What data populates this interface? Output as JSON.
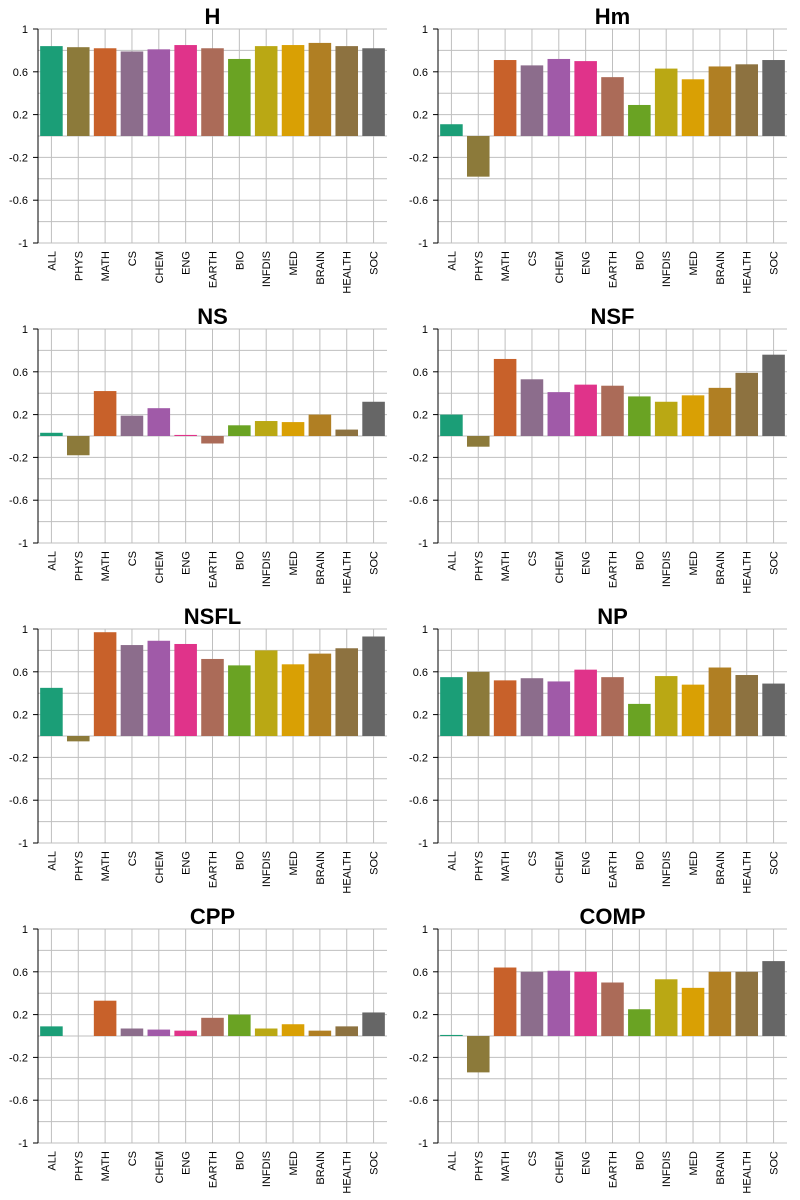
{
  "chart_data": [
    {
      "type": "bar",
      "title": "H",
      "categories": [
        "ALL",
        "PHYS",
        "MATH",
        "CS",
        "CHEM",
        "ENG",
        "EARTH",
        "BIO",
        "INFDIS",
        "MED",
        "BRAIN",
        "HEALTH",
        "SOC"
      ],
      "values": [
        0.84,
        0.83,
        0.82,
        0.79,
        0.81,
        0.85,
        0.82,
        0.72,
        0.84,
        0.85,
        0.87,
        0.84,
        0.82
      ],
      "ylim": [
        -1,
        1
      ],
      "yticks": [
        "1",
        "0.6",
        "0.2",
        "-0.2",
        "-0.6",
        "-1"
      ],
      "xlabel": "",
      "ylabel": "",
      "grid": true
    },
    {
      "type": "bar",
      "title": "Hm",
      "categories": [
        "ALL",
        "PHYS",
        "MATH",
        "CS",
        "CHEM",
        "ENG",
        "EARTH",
        "BIO",
        "INFDIS",
        "MED",
        "BRAIN",
        "HEALTH",
        "SOC"
      ],
      "values": [
        0.11,
        -0.38,
        0.71,
        0.66,
        0.72,
        0.7,
        0.55,
        0.29,
        0.63,
        0.53,
        0.65,
        0.67,
        0.71
      ],
      "ylim": [
        -1,
        1
      ],
      "yticks": [
        "1",
        "0.6",
        "0.2",
        "-0.2",
        "-0.6",
        "-1"
      ],
      "xlabel": "",
      "ylabel": "",
      "grid": true
    },
    {
      "type": "bar",
      "title": "NS",
      "categories": [
        "ALL",
        "PHYS",
        "MATH",
        "CS",
        "CHEM",
        "ENG",
        "EARTH",
        "BIO",
        "INFDIS",
        "MED",
        "BRAIN",
        "HEALTH",
        "SOC"
      ],
      "values": [
        0.03,
        -0.18,
        0.42,
        0.19,
        0.26,
        0.01,
        -0.07,
        0.1,
        0.14,
        0.13,
        0.2,
        0.06,
        0.32
      ],
      "ylim": [
        -1,
        1
      ],
      "yticks": [
        "1",
        "0.6",
        "0.2",
        "-0.2",
        "-0.6",
        "-1"
      ],
      "xlabel": "",
      "ylabel": "",
      "grid": true
    },
    {
      "type": "bar",
      "title": "NSF",
      "categories": [
        "ALL",
        "PHYS",
        "MATH",
        "CS",
        "CHEM",
        "ENG",
        "EARTH",
        "BIO",
        "INFDIS",
        "MED",
        "BRAIN",
        "HEALTH",
        "SOC"
      ],
      "values": [
        0.2,
        -0.1,
        0.72,
        0.53,
        0.41,
        0.48,
        0.47,
        0.37,
        0.32,
        0.38,
        0.45,
        0.59,
        0.76
      ],
      "ylim": [
        -1,
        1
      ],
      "yticks": [
        "1",
        "0.6",
        "0.2",
        "-0.2",
        "-0.6",
        "-1"
      ],
      "xlabel": "",
      "ylabel": "",
      "grid": true
    },
    {
      "type": "bar",
      "title": "NSFL",
      "categories": [
        "ALL",
        "PHYS",
        "MATH",
        "CS",
        "CHEM",
        "ENG",
        "EARTH",
        "BIO",
        "INFDIS",
        "MED",
        "BRAIN",
        "HEALTH",
        "SOC"
      ],
      "values": [
        0.45,
        -0.05,
        0.97,
        0.85,
        0.89,
        0.86,
        0.72,
        0.66,
        0.8,
        0.67,
        0.77,
        0.82,
        0.93
      ],
      "ylim": [
        -1,
        1
      ],
      "yticks": [
        "1",
        "0.6",
        "0.2",
        "-0.2",
        "-0.6",
        "-1"
      ],
      "xlabel": "",
      "ylabel": "",
      "grid": true
    },
    {
      "type": "bar",
      "title": "NP",
      "categories": [
        "ALL",
        "PHYS",
        "MATH",
        "CS",
        "CHEM",
        "ENG",
        "EARTH",
        "BIO",
        "INFDIS",
        "MED",
        "BRAIN",
        "HEALTH",
        "SOC"
      ],
      "values": [
        0.55,
        0.6,
        0.52,
        0.54,
        0.51,
        0.62,
        0.55,
        0.3,
        0.56,
        0.48,
        0.64,
        0.57,
        0.49
      ],
      "ylim": [
        -1,
        1
      ],
      "yticks": [
        "1",
        "0.6",
        "0.2",
        "-0.2",
        "-0.6",
        "-1"
      ],
      "xlabel": "",
      "ylabel": "",
      "grid": true
    },
    {
      "type": "bar",
      "title": "CPP",
      "categories": [
        "ALL",
        "PHYS",
        "MATH",
        "CS",
        "CHEM",
        "ENG",
        "EARTH",
        "BIO",
        "INFDIS",
        "MED",
        "BRAIN",
        "HEALTH",
        "SOC"
      ],
      "values": [
        0.09,
        0.0,
        0.33,
        0.07,
        0.06,
        0.05,
        0.17,
        0.2,
        0.07,
        0.11,
        0.05,
        0.09,
        0.22
      ],
      "ylim": [
        -1,
        1
      ],
      "yticks": [
        "1",
        "0.6",
        "0.2",
        "-0.2",
        "-0.6",
        "-1"
      ],
      "xlabel": "",
      "ylabel": "",
      "grid": true
    },
    {
      "type": "bar",
      "title": "COMP",
      "categories": [
        "ALL",
        "PHYS",
        "MATH",
        "CS",
        "CHEM",
        "ENG",
        "EARTH",
        "BIO",
        "INFDIS",
        "MED",
        "BRAIN",
        "HEALTH",
        "SOC"
      ],
      "values": [
        0.01,
        -0.34,
        0.64,
        0.6,
        0.61,
        0.6,
        0.5,
        0.25,
        0.53,
        0.45,
        0.6,
        0.6,
        0.7
      ],
      "ylim": [
        -1,
        1
      ],
      "yticks": [
        "1",
        "0.6",
        "0.2",
        "-0.2",
        "-0.6",
        "-1"
      ],
      "xlabel": "",
      "ylabel": "",
      "grid": true
    }
  ],
  "colors": [
    "#1b9e77",
    "#8c7a3a",
    "#c8612a",
    "#8c6d8c",
    "#a05aa8",
    "#e0338a",
    "#ab6b58",
    "#6aa323",
    "#baa814",
    "#d9a004",
    "#b07f23",
    "#8d7240",
    "#666666"
  ]
}
